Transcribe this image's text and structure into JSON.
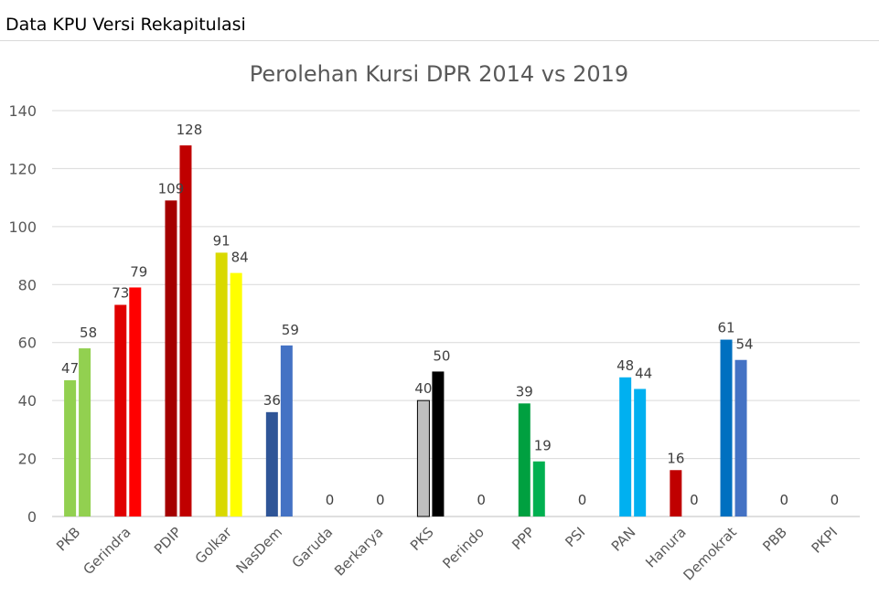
{
  "header": {
    "title": "Data KPU Versi Rekapitulasi"
  },
  "chart_data": {
    "type": "bar",
    "title": "Perolehan Kursi DPR 2014 vs 2019",
    "xlabel": "",
    "ylabel": "",
    "ylim": [
      0,
      140
    ],
    "yticks": [
      0,
      20,
      40,
      60,
      80,
      100,
      120,
      140
    ],
    "grid": true,
    "legend": "none",
    "categories": [
      "PKB",
      "Gerindra",
      "PDIP",
      "Golkar",
      "NasDem",
      "Garuda",
      "Berkarya",
      "PKS",
      "Perindo",
      "PPP",
      "PSI",
      "PAN",
      "Hanura",
      "Demokrat",
      "PBB",
      "PKPI"
    ],
    "series": [
      {
        "values": [
          47,
          73,
          109,
          91,
          36,
          null,
          null,
          40,
          null,
          39,
          null,
          48,
          16,
          61,
          null,
          null
        ]
      },
      {
        "values": [
          58,
          79,
          128,
          84,
          59,
          0,
          0,
          50,
          0,
          19,
          0,
          44,
          0,
          54,
          0,
          0
        ]
      }
    ],
    "colors": {
      "PKB": [
        "#92d050",
        "#92d050"
      ],
      "Gerindra": [
        "#e00000",
        "#ff0000"
      ],
      "PDIP": [
        "#a50000",
        "#c00000"
      ],
      "Golkar": [
        "#d9d900",
        "#ffff00"
      ],
      "NasDem": [
        "#2f5597",
        "#4472c4"
      ],
      "Garuda": [
        "#cccccc",
        "#cccccc"
      ],
      "Berkarya": [
        "#cccccc",
        "#cccccc"
      ],
      "PKS": [
        "#bfbfbf",
        "#000000"
      ],
      "Perindo": [
        "#cccccc",
        "#cccccc"
      ],
      "PPP": [
        "#00a040",
        "#00b050"
      ],
      "PSI": [
        "#cccccc",
        "#cccccc"
      ],
      "PAN": [
        "#00b0f0",
        "#00b0f0"
      ],
      "Hanura": [
        "#c00000",
        "#c00000"
      ],
      "Demokrat": [
        "#0070c0",
        "#4472c4"
      ],
      "PBB": [
        "#cccccc",
        "#cccccc"
      ],
      "PKPI": [
        "#cccccc",
        "#cccccc"
      ]
    }
  }
}
